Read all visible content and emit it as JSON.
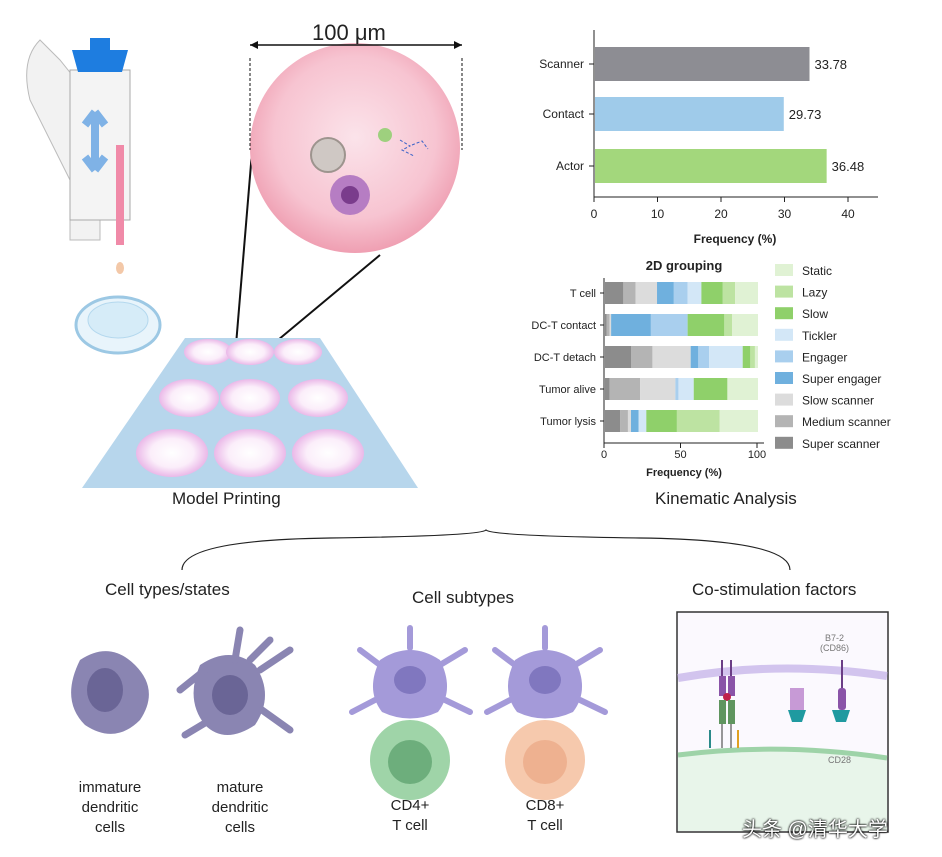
{
  "scale_label": "100 μm",
  "section_labels": {
    "model_printing": "Model Printing",
    "kinematic_analysis": "Kinematic Analysis"
  },
  "panels": {
    "cell_types": {
      "title": "Cell types/states",
      "items": [
        "immature\ndendritic\ncells",
        "mature\ndendritic\ncells"
      ]
    },
    "cell_subtypes": {
      "title": "Cell subtypes",
      "items": [
        "CD4+\nT cell",
        "CD8+\nT cell"
      ]
    },
    "costim": {
      "title": "Co-stimulation factors",
      "labels": {
        "b7": "B7-2\n(CD86)",
        "cd28": "CD28"
      }
    }
  },
  "watermark": "头条 @清华大学",
  "chart_data": [
    {
      "type": "bar",
      "orientation": "horizontal",
      "categories": [
        "Scanner",
        "Contact",
        "Actor"
      ],
      "values": [
        33.78,
        29.73,
        36.48
      ],
      "data_labels": [
        "33.78",
        "29.73",
        "36.48"
      ],
      "colors": [
        "#8d8d93",
        "#9fcbea",
        "#a3d77c"
      ],
      "xlabel": "Frequency (%)",
      "xlim": [
        0,
        40
      ],
      "xticks": [
        "0",
        "10",
        "20",
        "30",
        "40"
      ]
    },
    {
      "type": "bar",
      "stacked": true,
      "orientation": "horizontal",
      "title": "2D grouping",
      "categories": [
        "T cell",
        "DC-T contact",
        "DC-T detach",
        "Tumor alive",
        "Tumor lysis"
      ],
      "series": [
        {
          "name": "Super scanner",
          "color": "#8c8c8c",
          "values": [
            12,
            1,
            17,
            3,
            10
          ]
        },
        {
          "name": "Medium scanner",
          "color": "#b4b4b4",
          "values": [
            8,
            2,
            14,
            20,
            5
          ]
        },
        {
          "name": "Slow scanner",
          "color": "#dcdcdc",
          "values": [
            14,
            1,
            25,
            23,
            2
          ]
        },
        {
          "name": "Super engager",
          "color": "#6fb0de",
          "values": [
            11,
            26,
            5,
            0,
            5
          ]
        },
        {
          "name": "Engager",
          "color": "#a9cfee",
          "values": [
            9,
            24,
            7,
            2,
            0
          ]
        },
        {
          "name": "Tickler",
          "color": "#d3e7f7",
          "values": [
            9,
            0,
            22,
            10,
            5
          ]
        },
        {
          "name": "Slow",
          "color": "#8fd06a",
          "values": [
            14,
            24,
            5,
            22,
            20
          ]
        },
        {
          "name": "Lazy",
          "color": "#bde3a2",
          "values": [
            8,
            5,
            3,
            0,
            28
          ]
        },
        {
          "name": "Static",
          "color": "#e0f2d4",
          "values": [
            15,
            17,
            2,
            20,
            25
          ]
        }
      ],
      "legend_order": [
        "Static",
        "Lazy",
        "Slow",
        "Tickler",
        "Engager",
        "Super engager",
        "Slow scanner",
        "Medium scanner",
        "Super scanner"
      ],
      "xlabel": "Frequency (%)",
      "xlim": [
        0,
        100
      ],
      "xticks": [
        "0",
        "50",
        "100"
      ],
      "legend_position": "right"
    }
  ]
}
